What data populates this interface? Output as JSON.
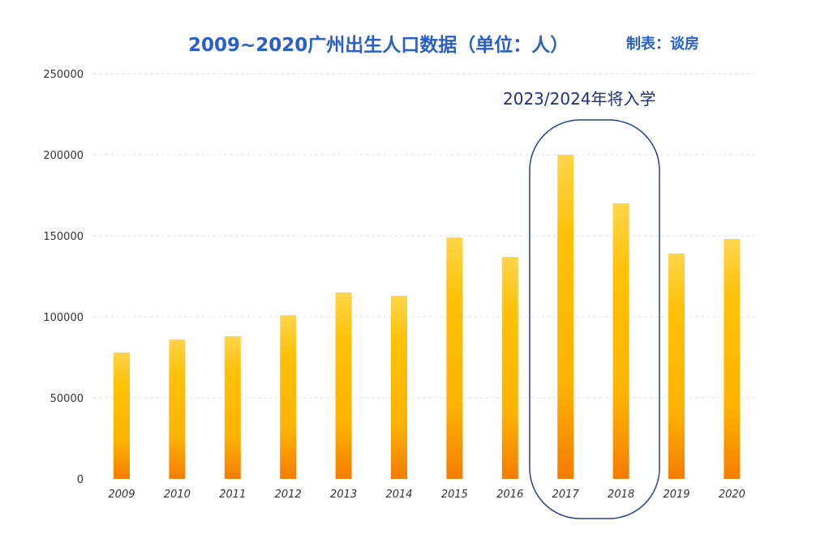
{
  "chart_data": {
    "type": "bar",
    "title": "2009~2020广州出生人口数据（单位：人）",
    "subtitle": "制表：谈房",
    "annotation": "2023/2024年将入学",
    "highlighted_categories": [
      "2017",
      "2018"
    ],
    "categories": [
      "2009",
      "2010",
      "2011",
      "2012",
      "2013",
      "2014",
      "2015",
      "2016",
      "2017",
      "2018",
      "2019",
      "2020"
    ],
    "values": [
      78000,
      86000,
      88000,
      101000,
      115000,
      113000,
      149000,
      137000,
      200000,
      170000,
      139000,
      148000
    ],
    "ylim": [
      0,
      250000
    ],
    "yticks": [
      "0",
      "50000",
      "100000",
      "150000",
      "200000",
      "250000"
    ],
    "grid": true,
    "xlabel": "",
    "ylabel": "",
    "colors": {
      "bar_top": "#ffd54a",
      "bar_mid": "#ffc107",
      "bar_bottom": "#f57c00",
      "title": "#2a5fc4",
      "highlight": "#1f2f7a"
    }
  }
}
